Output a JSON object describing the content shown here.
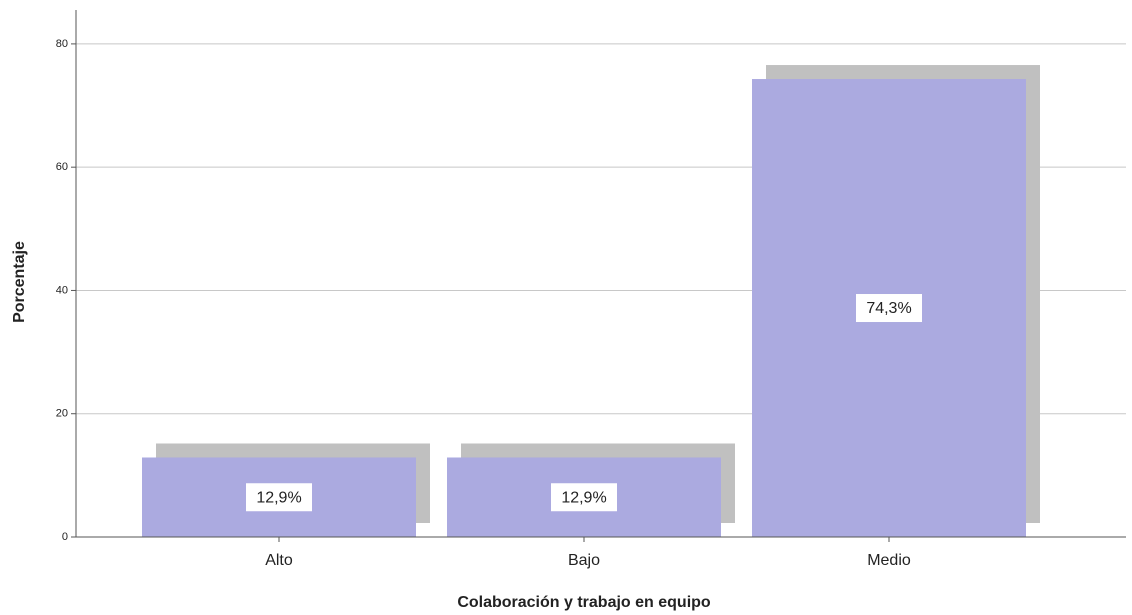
{
  "chart_data": {
    "type": "bar",
    "xlabel": "Colaboración y trabajo en equipo",
    "ylabel": "Porcentaje",
    "categories": [
      "Alto",
      "Bajo",
      "Medio"
    ],
    "values": [
      12.9,
      12.9,
      74.3
    ],
    "value_labels": [
      "12,9%",
      "12,9%",
      "74,3%"
    ],
    "color": "#abaae0",
    "shadow_color": "#c0c0c0",
    "ylim": [
      0,
      85.5
    ],
    "yticks": [
      0,
      20,
      40,
      60,
      80
    ],
    "grid": true
  }
}
